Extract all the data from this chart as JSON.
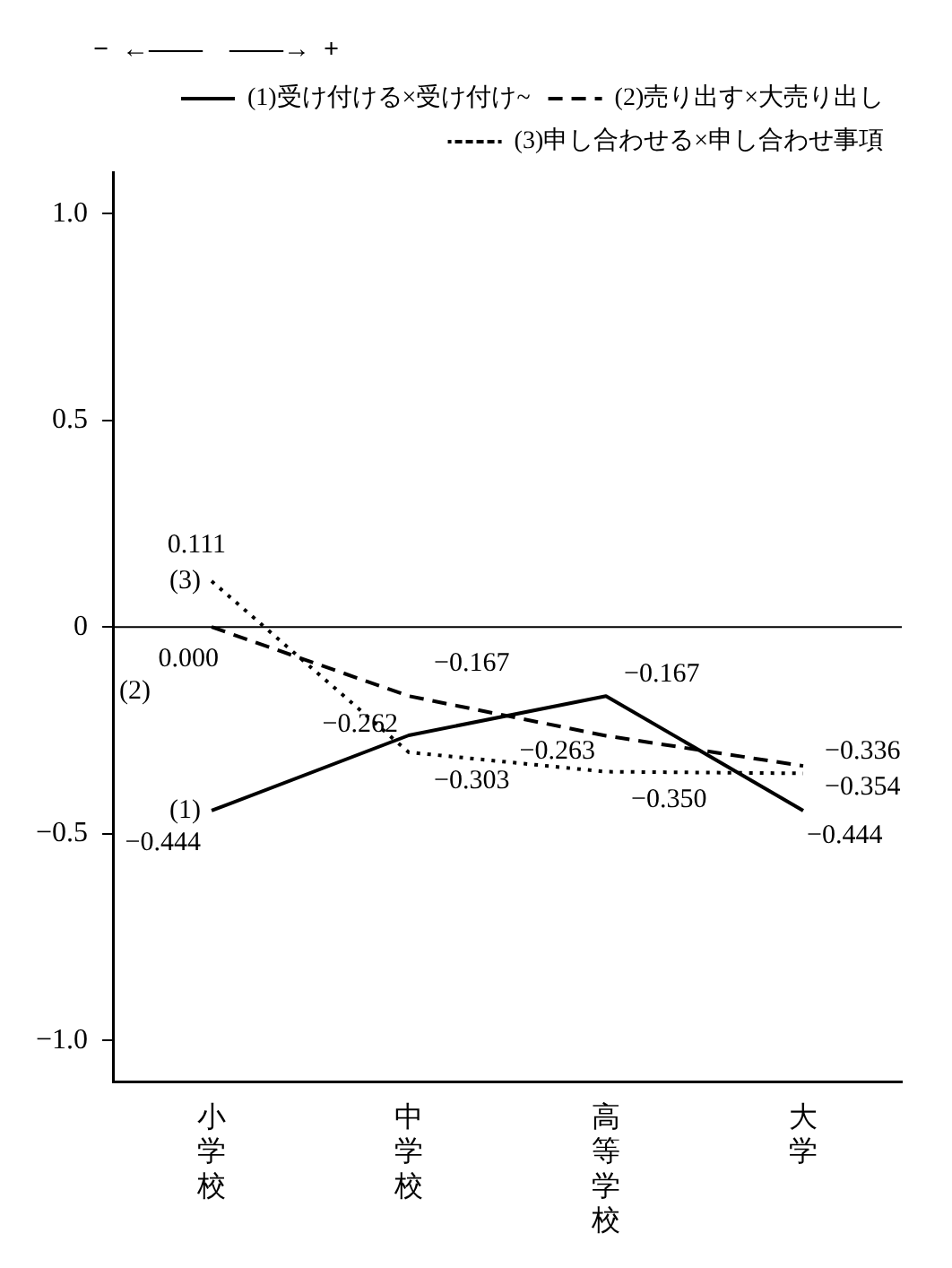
{
  "chart_data": {
    "type": "line",
    "categories": [
      "小学校",
      "中学校",
      "高等学校",
      "大学"
    ],
    "series": [
      {
        "name": "(1)受け付ける×受け付け~",
        "color": "#000000",
        "line_style": "solid",
        "values": [
          -0.444,
          -0.262,
          -0.167,
          -0.444
        ],
        "value_labels": [
          "−0.444",
          "−0.262",
          "−0.167",
          "−0.444"
        ]
      },
      {
        "name": "(2)売り出す×大売り出し",
        "color": "#000000",
        "line_style": "dashed",
        "values": [
          0.0,
          -0.167,
          -0.263,
          -0.336
        ],
        "value_labels": [
          "0.000",
          "−0.167",
          "−0.263",
          "−0.336"
        ]
      },
      {
        "name": "(3)申し合わせる×申し合わせ事項",
        "color": "#000000",
        "line_style": "dotted",
        "values": [
          0.111,
          -0.303,
          -0.35,
          -0.354
        ],
        "value_labels": [
          "0.111",
          "−0.303",
          "−0.350",
          "−0.354"
        ]
      }
    ],
    "ylim": [
      -1.1,
      1.1
    ],
    "yticks": [
      {
        "value": 1.0,
        "label": "1.0"
      },
      {
        "value": 0.5,
        "label": "0.5"
      },
      0,
      {
        "value": -0.5,
        "label": "−0.5"
      },
      {
        "value": -1.0,
        "label": "−1.0"
      }
    ],
    "ref_lines": [
      {
        "axis": "y",
        "value": 0,
        "label": null
      }
    ],
    "annotations": [
      "−  ←——    ——→  +",
      {
        "text": "(1)",
        "x": "小学校",
        "y": -0.444
      },
      {
        "text": "(2)",
        "x": "小学校",
        "y": 0.0
      },
      {
        "text": "(3)",
        "x": "小学校",
        "y": 0.111
      }
    ],
    "grid": false,
    "legend": "top right",
    "marker": "none"
  }
}
